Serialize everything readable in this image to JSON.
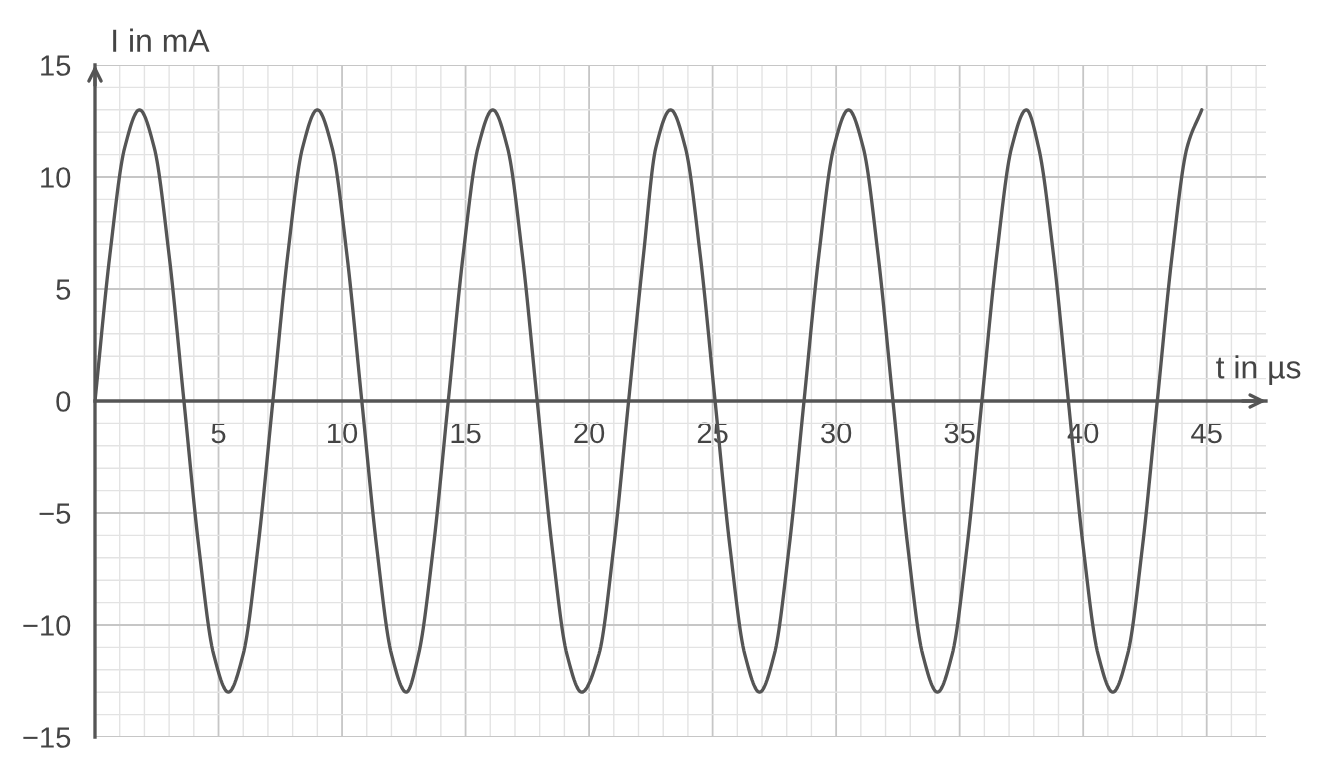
{
  "chart_data": {
    "type": "line",
    "xlabel": "t in µs",
    "ylabel": "I in mA",
    "x": [
      0,
      0.6,
      1.2,
      1.8,
      2.4,
      3.0,
      3.6,
      4.2,
      4.8,
      5.4,
      6.0,
      6.6,
      7.2,
      7.8,
      8.4,
      9.0,
      9.6,
      10.2,
      10.8,
      11.4,
      12.0,
      12.6,
      13.1,
      13.7,
      14.3,
      14.9,
      15.5,
      16.1,
      16.7,
      17.3,
      17.9,
      18.5,
      19.1,
      19.7,
      20.4,
      21.0,
      21.6,
      22.2,
      22.7,
      23.3,
      23.9,
      24.5,
      25.1,
      25.7,
      26.3,
      26.9,
      27.5,
      28.1,
      28.7,
      29.3,
      29.9,
      30.5,
      31.1,
      31.7,
      32.3,
      32.9,
      33.5,
      34.1,
      34.7,
      35.3,
      35.9,
      36.5,
      37.1,
      37.7,
      38.2,
      38.8,
      39.4,
      40.0,
      40.6,
      41.2,
      41.8,
      42.4,
      43.0,
      43.6,
      44.2,
      44.8
    ],
    "series": [
      {
        "color": "#555555",
        "values": [
          0,
          6.5,
          11.3,
          13,
          11.3,
          6.5,
          0,
          -6.5,
          -11.3,
          -13,
          -11.3,
          -6.5,
          0,
          6.5,
          11.3,
          13,
          11.3,
          6.5,
          0,
          -6.5,
          -11.3,
          -13,
          -11.3,
          -6.5,
          0,
          6.5,
          11.3,
          13,
          11.3,
          6.5,
          0,
          -6.5,
          -11.3,
          -13,
          -11.3,
          -6.5,
          0,
          6.5,
          11.3,
          13,
          11.3,
          6.5,
          0,
          -6.5,
          -11.3,
          -13,
          -11.3,
          -6.5,
          0,
          6.5,
          11.3,
          13,
          11.3,
          6.5,
          0,
          -6.5,
          -11.3,
          -13,
          -11.3,
          -6.5,
          0,
          6.5,
          11.3,
          13,
          11.3,
          6.5,
          0,
          -6.5,
          -11.3,
          -13,
          -11.3,
          -6.5,
          0,
          6.5,
          11.3,
          13
        ]
      }
    ],
    "xlim": [
      0,
      47.4
    ],
    "ylim": [
      -15,
      15
    ],
    "xticks": [
      5,
      10,
      15,
      20,
      25,
      30,
      35,
      40,
      45
    ],
    "yticks": [
      {
        "value": -15,
        "label": "−15"
      },
      {
        "value": -10,
        "label": "−10"
      },
      {
        "value": -5,
        "label": "−5"
      },
      0,
      5,
      10,
      15
    ],
    "grid": true,
    "line_style": "solid"
  }
}
